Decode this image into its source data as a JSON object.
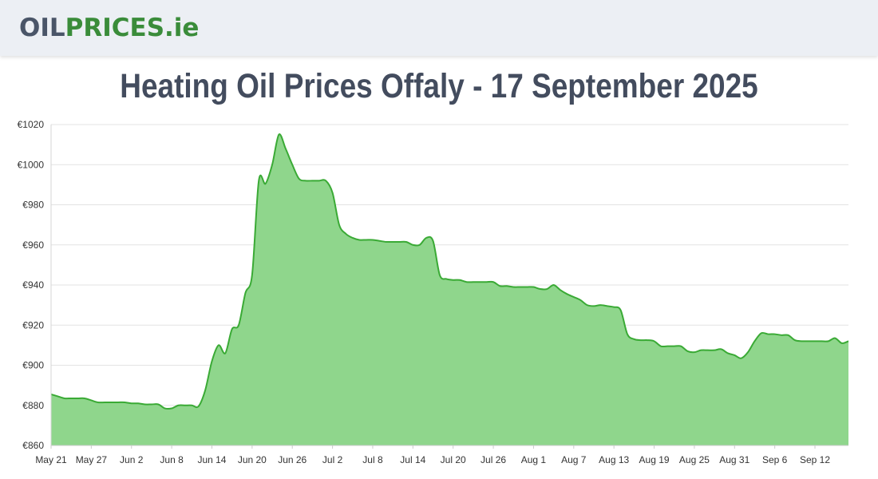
{
  "header": {
    "logo_part1": "OIL",
    "logo_part2": "PRICES",
    "logo_part3": ".ie"
  },
  "title": "Heating Oil Prices Offaly - 17 September 2025",
  "colors": {
    "line": "#3aaa35",
    "fill": "#8fd68c",
    "grid": "#e3e3e3",
    "header_bg": "#eceff4",
    "title": "#434c5e"
  },
  "chart_data": {
    "type": "area",
    "title": "Heating Oil Prices Offaly - 17 September 2025",
    "xlabel": "",
    "ylabel": "",
    "ylim": [
      860,
      1020
    ],
    "grid": true,
    "y_ticks": [
      "€860",
      "€880",
      "€900",
      "€920",
      "€940",
      "€960",
      "€980",
      "€1000",
      "€1020"
    ],
    "x_ticks": [
      "May 21",
      "May 27",
      "Jun 2",
      "Jun 8",
      "Jun 14",
      "Jun 20",
      "Jun 26",
      "Jul 2",
      "Jul 8",
      "Jul 14",
      "Jul 20",
      "Jul 26",
      "Aug 1",
      "Aug 7",
      "Aug 13",
      "Aug 19",
      "Aug 25",
      "Aug 31",
      "Sep 6",
      "Sep 12"
    ],
    "x": [
      "May 21",
      "May 22",
      "May 23",
      "May 24",
      "May 25",
      "May 26",
      "May 27",
      "May 28",
      "May 29",
      "May 30",
      "May 31",
      "Jun 1",
      "Jun 2",
      "Jun 3",
      "Jun 4",
      "Jun 5",
      "Jun 6",
      "Jun 7",
      "Jun 8",
      "Jun 9",
      "Jun 10",
      "Jun 11",
      "Jun 12",
      "Jun 13",
      "Jun 14",
      "Jun 15",
      "Jun 16",
      "Jun 17",
      "Jun 18",
      "Jun 19",
      "Jun 20",
      "Jun 21",
      "Jun 22",
      "Jun 23",
      "Jun 24",
      "Jun 25",
      "Jun 26",
      "Jun 27",
      "Jun 28",
      "Jun 29",
      "Jun 30",
      "Jul 1",
      "Jul 2",
      "Jul 3",
      "Jul 4",
      "Jul 5",
      "Jul 6",
      "Jul 7",
      "Jul 8",
      "Jul 9",
      "Jul 10",
      "Jul 11",
      "Jul 12",
      "Jul 13",
      "Jul 14",
      "Jul 15",
      "Jul 16",
      "Jul 17",
      "Jul 18",
      "Jul 19",
      "Jul 20",
      "Jul 21",
      "Jul 22",
      "Jul 23",
      "Jul 24",
      "Jul 25",
      "Jul 26",
      "Jul 27",
      "Jul 28",
      "Jul 29",
      "Jul 30",
      "Jul 31",
      "Aug 1",
      "Aug 2",
      "Aug 3",
      "Aug 4",
      "Aug 5",
      "Aug 6",
      "Aug 7",
      "Aug 8",
      "Aug 9",
      "Aug 10",
      "Aug 11",
      "Aug 12",
      "Aug 13",
      "Aug 14",
      "Aug 15",
      "Aug 16",
      "Aug 17",
      "Aug 18",
      "Aug 19",
      "Aug 20",
      "Aug 21",
      "Aug 22",
      "Aug 23",
      "Aug 24",
      "Aug 25",
      "Aug 26",
      "Aug 27",
      "Aug 28",
      "Aug 29",
      "Aug 30",
      "Aug 31",
      "Sep 1",
      "Sep 2",
      "Sep 3",
      "Sep 4",
      "Sep 5",
      "Sep 6",
      "Sep 7",
      "Sep 8",
      "Sep 9",
      "Sep 10",
      "Sep 11",
      "Sep 12",
      "Sep 13",
      "Sep 14",
      "Sep 15",
      "Sep 16",
      "Sep 17"
    ],
    "series": [
      {
        "values": [
          885.5,
          884.5,
          883.5,
          883.5,
          883.5,
          883.5,
          882.5,
          881.5,
          881.5,
          881.5,
          881.5,
          881.5,
          881.0,
          881.0,
          880.5,
          880.5,
          880.5,
          878.5,
          878.5,
          880.0,
          880.0,
          880.0,
          879.5,
          887.5,
          902.0,
          910.0,
          906.0,
          918.0,
          920.0,
          936.0,
          945.0,
          992.0,
          990.5,
          1000.0,
          1015.0,
          1008.0,
          1000.0,
          993.0,
          992.0,
          992.0,
          992.0,
          992.0,
          986.0,
          970.0,
          965.5,
          963.5,
          962.5,
          962.5,
          962.5,
          962.0,
          961.5,
          961.5,
          961.5,
          961.5,
          960.0,
          960.0,
          963.5,
          962.0,
          945.0,
          943.0,
          942.5,
          942.5,
          941.5,
          941.5,
          941.5,
          941.5,
          941.5,
          939.5,
          939.5,
          939.0,
          939.0,
          939.0,
          939.0,
          938.0,
          938.0,
          940.0,
          937.5,
          935.5,
          934.0,
          932.5,
          930.0,
          929.5,
          930.0,
          929.5,
          929.0,
          927.5,
          915.5,
          913.0,
          912.5,
          912.5,
          912.0,
          909.5,
          909.5,
          909.5,
          909.5,
          907.0,
          906.5,
          907.5,
          907.5,
          907.5,
          908.0,
          906.0,
          905.0,
          903.5,
          906.5,
          912.0,
          916.0,
          915.5,
          915.5,
          915.0,
          915.0,
          912.5,
          912.0,
          912.0,
          912.0,
          912.0,
          912.0,
          913.5,
          911.0,
          912.0
        ]
      }
    ]
  }
}
